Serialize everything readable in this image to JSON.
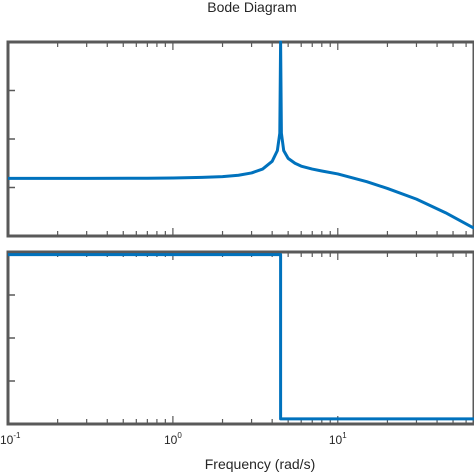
{
  "chart_data": {
    "type": "line",
    "title": "Bode Diagram",
    "xlabel": "Frequency  (rad/s)",
    "x_scale": "log",
    "xlim": [
      0.1,
      67
    ],
    "x_ticks": [
      {
        "base": "10",
        "exp": "-1",
        "value": 0.1
      },
      {
        "base": "10",
        "exp": "0",
        "value": 1
      },
      {
        "base": "10",
        "exp": "1",
        "value": 10
      }
    ],
    "grid": false,
    "color": "#0072BD",
    "axes_color": "#595959",
    "panels": [
      {
        "name": "magnitude",
        "ylim": [
          0,
          1
        ],
        "series": [
          {
            "x": [
              0.1,
              0.3,
              0.7,
              1.0,
              1.5,
              2.0,
              2.5,
              3.0,
              3.5,
              4.0,
              4.3,
              4.45,
              4.5,
              4.55,
              4.7,
              5.0,
              5.5,
              6.0,
              7.0,
              8.0,
              10.0,
              15.0,
              20.0,
              30.0,
              45.0,
              67.0
            ],
            "y": [
              0.297,
              0.297,
              0.298,
              0.299,
              0.302,
              0.306,
              0.313,
              0.325,
              0.345,
              0.385,
              0.44,
              0.53,
              1.0,
              0.53,
              0.44,
              0.4,
              0.375,
              0.36,
              0.345,
              0.335,
              0.32,
              0.28,
              0.245,
              0.19,
              0.12,
              0.04
            ]
          }
        ]
      },
      {
        "name": "phase",
        "ylim": [
          0,
          1
        ],
        "series": [
          {
            "x": [
              0.1,
              4.5,
              4.5,
              67.0
            ],
            "y": [
              0.985,
              0.985,
              0.03,
              0.03
            ]
          }
        ]
      }
    ]
  }
}
